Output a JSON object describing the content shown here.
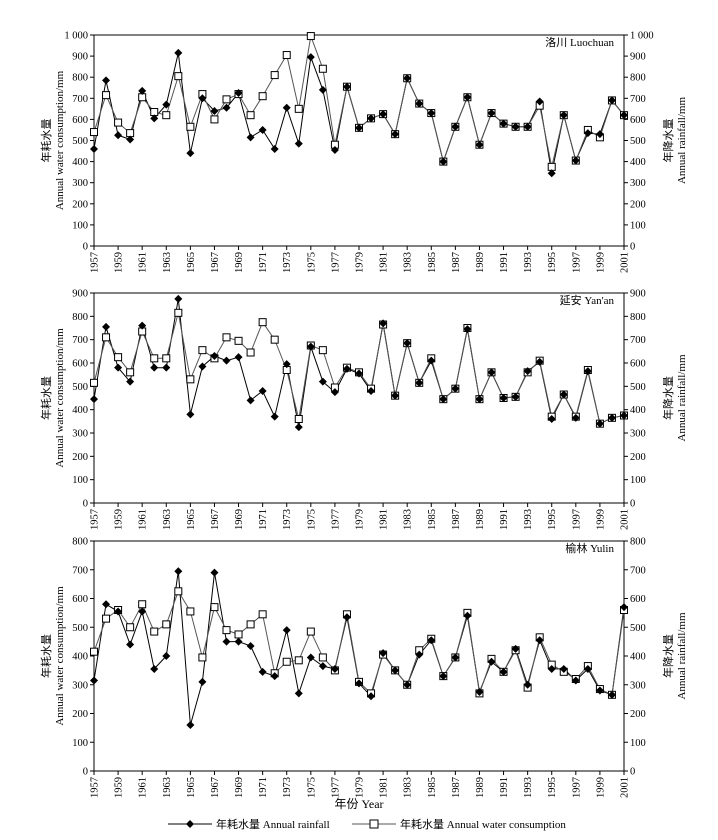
{
  "figure": {
    "xlabel": "年份 Year",
    "left_ylabel_cn": "年耗水量",
    "left_ylabel_en": "Annual water consumption/mm",
    "right_ylabel_cn": "年降水量",
    "right_ylabel_en": "Annual rainfall/mm",
    "legend": {
      "rain_label": "年耗水量 Annual rainfall",
      "water_label": "年耗水量 Annual water consumption"
    }
  },
  "chart_data": [
    {
      "type": "line",
      "title": "洛川  Luochuan",
      "ylim": [
        0,
        1000
      ],
      "ystep": 100,
      "yticklabels": [
        "0",
        "100",
        "200",
        "300",
        "400",
        "500",
        "600",
        "700",
        "800",
        "900",
        "1 000"
      ],
      "x": [
        1957,
        1958,
        1959,
        1960,
        1961,
        1962,
        1963,
        1964,
        1965,
        1966,
        1967,
        1968,
        1969,
        1970,
        1971,
        1972,
        1973,
        1974,
        1975,
        1976,
        1977,
        1978,
        1979,
        1980,
        1981,
        1982,
        1983,
        1984,
        1985,
        1986,
        1987,
        1988,
        1989,
        1990,
        1991,
        1992,
        1993,
        1994,
        1995,
        1996,
        1997,
        1998,
        1999,
        2000,
        2001
      ],
      "xticks": [
        1957,
        1959,
        1961,
        1963,
        1965,
        1967,
        1969,
        1971,
        1973,
        1975,
        1977,
        1979,
        1981,
        1983,
        1985,
        1987,
        1989,
        1991,
        1993,
        1995,
        1997,
        1999,
        2001
      ],
      "series": [
        {
          "name": "年耗水量 Annual rainfall",
          "values": [
            460,
            785,
            525,
            505,
            735,
            605,
            670,
            915,
            440,
            700,
            640,
            655,
            725,
            515,
            550,
            460,
            655,
            485,
            895,
            740,
            455,
            755,
            560,
            605,
            625,
            530,
            795,
            675,
            630,
            400,
            565,
            705,
            480,
            630,
            580,
            565,
            565,
            685,
            345,
            620,
            405,
            535,
            530,
            690,
            620
          ]
        },
        {
          "name": "年耗水量 Annual water consumption",
          "values": [
            540,
            715,
            585,
            535,
            705,
            635,
            620,
            805,
            565,
            720,
            600,
            695,
            720,
            620,
            710,
            810,
            905,
            650,
            995,
            840,
            480,
            755,
            560,
            605,
            625,
            530,
            795,
            675,
            630,
            400,
            565,
            705,
            480,
            630,
            580,
            565,
            565,
            665,
            375,
            620,
            405,
            550,
            515,
            690,
            620
          ]
        }
      ]
    },
    {
      "type": "line",
      "title": "延安  Yan'an",
      "ylim": [
        0,
        900
      ],
      "ystep": 100,
      "yticklabels": [
        "0",
        "100",
        "200",
        "300",
        "400",
        "500",
        "600",
        "700",
        "800",
        "900"
      ],
      "x": [
        1957,
        1958,
        1959,
        1960,
        1961,
        1962,
        1963,
        1964,
        1965,
        1966,
        1967,
        1968,
        1969,
        1970,
        1971,
        1972,
        1973,
        1974,
        1975,
        1976,
        1977,
        1978,
        1979,
        1980,
        1981,
        1982,
        1983,
        1984,
        1985,
        1986,
        1987,
        1988,
        1989,
        1990,
        1991,
        1992,
        1993,
        1994,
        1995,
        1996,
        1997,
        1998,
        1999,
        2000,
        2001
      ],
      "xticks": [
        1957,
        1959,
        1961,
        1963,
        1965,
        1967,
        1969,
        1971,
        1973,
        1975,
        1977,
        1979,
        1981,
        1983,
        1985,
        1987,
        1989,
        1991,
        1993,
        1995,
        1997,
        1999,
        2001
      ],
      "series": [
        {
          "name": "年耗水量 Annual rainfall",
          "values": [
            445,
            755,
            580,
            520,
            760,
            580,
            580,
            875,
            380,
            585,
            630,
            610,
            625,
            440,
            480,
            370,
            595,
            325,
            670,
            520,
            475,
            575,
            555,
            480,
            770,
            460,
            685,
            515,
            610,
            445,
            490,
            745,
            445,
            560,
            450,
            455,
            565,
            605,
            360,
            465,
            365,
            565,
            340,
            365,
            375
          ]
        },
        {
          "name": "年耗水量 Annual water consumption",
          "values": [
            515,
            710,
            625,
            560,
            735,
            620,
            620,
            815,
            530,
            655,
            620,
            710,
            695,
            645,
            775,
            700,
            570,
            360,
            675,
            655,
            495,
            580,
            560,
            490,
            765,
            460,
            685,
            515,
            620,
            445,
            490,
            750,
            445,
            560,
            450,
            455,
            560,
            610,
            370,
            465,
            370,
            570,
            340,
            365,
            375
          ]
        }
      ]
    },
    {
      "type": "line",
      "title": "榆林  Yulin",
      "ylim": [
        0,
        800
      ],
      "ystep": 100,
      "yticklabels": [
        "0",
        "100",
        "200",
        "300",
        "400",
        "500",
        "600",
        "700",
        "800"
      ],
      "x": [
        1957,
        1958,
        1959,
        1960,
        1961,
        1962,
        1963,
        1964,
        1965,
        1966,
        1967,
        1968,
        1969,
        1970,
        1971,
        1972,
        1973,
        1974,
        1975,
        1976,
        1977,
        1978,
        1979,
        1980,
        1981,
        1982,
        1983,
        1984,
        1985,
        1986,
        1987,
        1988,
        1989,
        1990,
        1991,
        1992,
        1993,
        1994,
        1995,
        1996,
        1997,
        1998,
        1999,
        2000,
        2001
      ],
      "xticks": [
        1957,
        1959,
        1961,
        1963,
        1965,
        1967,
        1969,
        1971,
        1973,
        1975,
        1977,
        1979,
        1981,
        1983,
        1985,
        1987,
        1989,
        1991,
        1993,
        1995,
        1997,
        1999,
        2001
      ],
      "series": [
        {
          "name": "年耗水量 Annual rainfall",
          "values": [
            315,
            580,
            555,
            440,
            555,
            355,
            400,
            695,
            160,
            310,
            690,
            450,
            450,
            435,
            345,
            330,
            490,
            270,
            395,
            365,
            355,
            535,
            305,
            260,
            410,
            350,
            300,
            405,
            455,
            330,
            395,
            540,
            275,
            380,
            345,
            425,
            300,
            455,
            355,
            355,
            315,
            355,
            280,
            265,
            570
          ]
        },
        {
          "name": "年耗水量 Annual water consumption",
          "values": [
            415,
            530,
            560,
            500,
            580,
            485,
            510,
            625,
            555,
            395,
            570,
            490,
            475,
            510,
            545,
            340,
            380,
            385,
            485,
            395,
            350,
            545,
            310,
            270,
            405,
            350,
            300,
            420,
            460,
            330,
            395,
            550,
            270,
            390,
            345,
            420,
            290,
            465,
            370,
            345,
            320,
            365,
            285,
            265,
            560
          ]
        }
      ]
    }
  ]
}
